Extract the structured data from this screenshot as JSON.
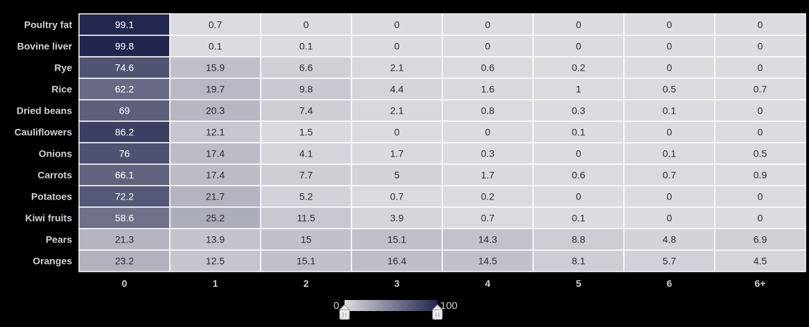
{
  "chart_data": {
    "type": "heatmap",
    "title": "",
    "xlabel": "",
    "ylabel": "",
    "rows": [
      "Poultry fat",
      "Bovine liver",
      "Rye",
      "Rice",
      "Dried beans",
      "Cauliflowers",
      "Onions",
      "Carrots",
      "Potatoes",
      "Kiwi fruits",
      "Pears",
      "Oranges"
    ],
    "columns": [
      "0",
      "1",
      "2",
      "3",
      "4",
      "5",
      "6",
      "6+"
    ],
    "values": [
      [
        99.1,
        0.7,
        0,
        0,
        0,
        0,
        0,
        0
      ],
      [
        99.8,
        0.1,
        0.1,
        0,
        0,
        0,
        0,
        0
      ],
      [
        74.6,
        15.9,
        6.6,
        2.1,
        0.6,
        0.2,
        0,
        0
      ],
      [
        62.2,
        19.7,
        9.8,
        4.4,
        1.6,
        1,
        0.5,
        0.7
      ],
      [
        69,
        20.3,
        7.4,
        2.1,
        0.8,
        0.3,
        0.1,
        0
      ],
      [
        86.2,
        12.1,
        1.5,
        0,
        0,
        0.1,
        0,
        0
      ],
      [
        76,
        17.4,
        4.1,
        1.7,
        0.3,
        0,
        0.1,
        0.5
      ],
      [
        66.1,
        17.4,
        7.7,
        5,
        1.7,
        0.6,
        0.7,
        0.9
      ],
      [
        72.2,
        21.7,
        5.2,
        0.7,
        0.2,
        0,
        0,
        0
      ],
      [
        58.6,
        25.2,
        11.5,
        3.9,
        0.7,
        0.1,
        0,
        0
      ],
      [
        21.3,
        13.9,
        15,
        15.1,
        14.3,
        8.8,
        4.8,
        6.9
      ],
      [
        23.2,
        12.5,
        15.1,
        16.4,
        14.5,
        8.1,
        5.7,
        4.5
      ]
    ],
    "color_scale": {
      "min": 0,
      "max": 100,
      "min_label": "0",
      "max_label": "100",
      "min_color": "#dcdce0",
      "max_color": "#22254e"
    },
    "grid": true,
    "legend": "bottom-center"
  },
  "colors": {
    "background": "#000000",
    "grid_line": "#ffffff",
    "label_text": "#d2d2d6",
    "dark_cell_text": "#ffffff",
    "light_cell_text": "#2a2a30"
  }
}
